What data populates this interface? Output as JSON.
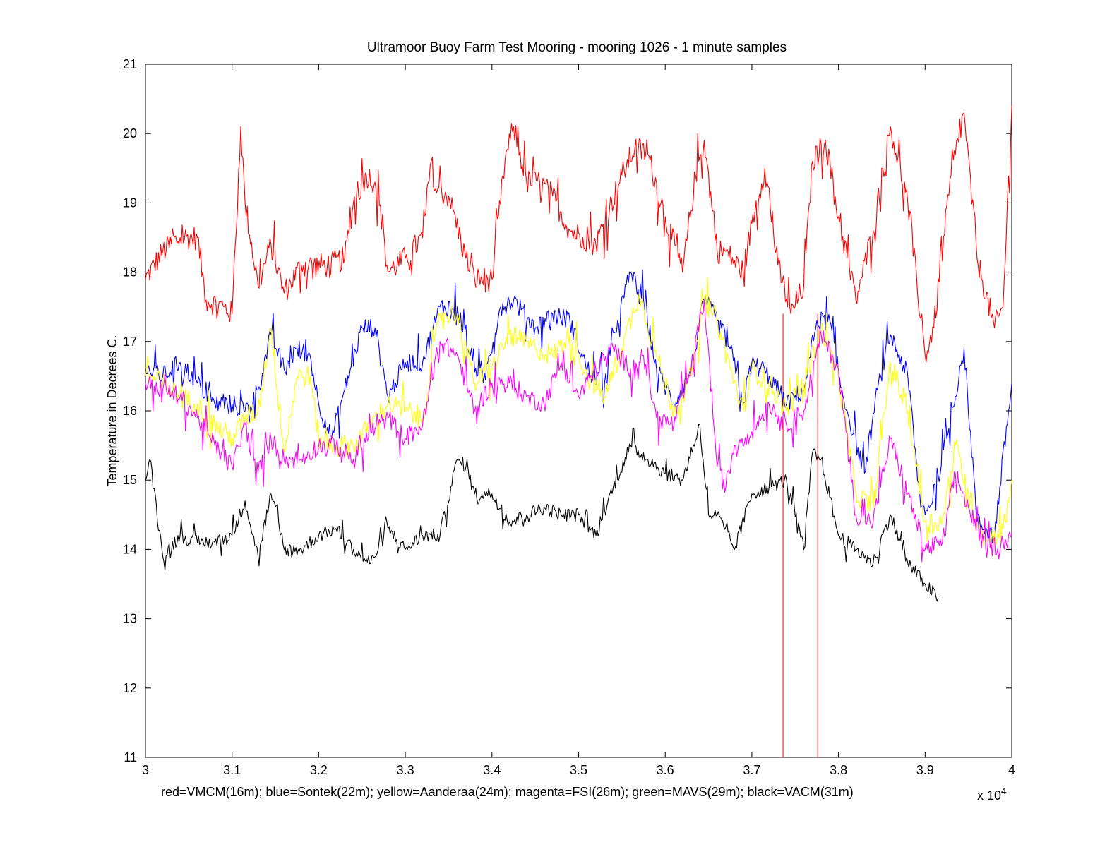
{
  "chart_data": {
    "type": "line",
    "title": "Ultramoor Buoy Farm Test Mooring - mooring 1026 - 1 minute samples",
    "xlabel": "red=VMCM(16m); blue=Sontek(22m); yellow=Aanderaa(24m); magenta=FSI(26m); green=MAVS(29m); black=VACM(31m)",
    "ylabel": "Temperature in Decrees C.",
    "x_exponent_label": "x 10",
    "x_exponent_power": "4",
    "xlim": [
      3,
      4
    ],
    "ylim": [
      11,
      21
    ],
    "xticks": [
      "3",
      "3.1",
      "3.2",
      "3.3",
      "3.4",
      "3.5",
      "3.6",
      "3.7",
      "3.8",
      "3.9",
      "4"
    ],
    "xtick_values": [
      3,
      3.1,
      3.2,
      3.3,
      3.4,
      3.5,
      3.6,
      3.7,
      3.8,
      3.9,
      4
    ],
    "yticks": [
      "11",
      "12",
      "13",
      "14",
      "15",
      "16",
      "17",
      "18",
      "19",
      "20",
      "21"
    ],
    "ytick_values": [
      11,
      12,
      13,
      14,
      15,
      16,
      17,
      18,
      19,
      20,
      21
    ],
    "grid": false,
    "series": [
      {
        "color": "#ff0000",
        "x": [
          3.0,
          3.02,
          3.04,
          3.06,
          3.07,
          3.09,
          3.1,
          3.11,
          3.115,
          3.13,
          3.145,
          3.16,
          3.18,
          3.21,
          3.23,
          3.24,
          3.255,
          3.265,
          3.275,
          3.28,
          3.3,
          3.32,
          3.33,
          3.335,
          3.35,
          3.37,
          3.38,
          3.4,
          3.415,
          3.425,
          3.44,
          3.455,
          3.47,
          3.49,
          3.505,
          3.52,
          3.55,
          3.565,
          3.58,
          3.6,
          3.62,
          3.635,
          3.645,
          3.66,
          3.67,
          3.69,
          3.7,
          3.715,
          3.73,
          3.745,
          3.76,
          3.77,
          3.785,
          3.8,
          3.82,
          3.84,
          3.86,
          3.88,
          3.9,
          3.91,
          3.93,
          3.945,
          3.96,
          3.98,
          3.99,
          4.0
        ],
        "y": [
          17.9,
          18.3,
          18.5,
          18.5,
          17.6,
          17.5,
          17.4,
          20.1,
          19.0,
          17.8,
          18.4,
          17.7,
          18.1,
          18.1,
          18.2,
          19.0,
          19.4,
          19.3,
          18.6,
          18.0,
          18.2,
          18.5,
          19.6,
          19.2,
          19.1,
          18.2,
          17.9,
          17.9,
          19.6,
          20.1,
          19.3,
          19.3,
          19.1,
          18.6,
          18.5,
          18.4,
          19.4,
          19.8,
          19.7,
          18.8,
          18.0,
          19.4,
          19.9,
          18.3,
          18.3,
          18.0,
          18.7,
          19.5,
          18.1,
          17.4,
          17.8,
          19.6,
          19.9,
          18.8,
          17.6,
          18.6,
          20.1,
          19.0,
          16.8,
          17.2,
          19.4,
          20.3,
          18.2,
          17.2,
          17.5,
          20.4
        ]
      },
      {
        "color": "#0000ff",
        "x": [
          3.0,
          3.02,
          3.04,
          3.06,
          3.08,
          3.1,
          3.115,
          3.13,
          3.145,
          3.16,
          3.175,
          3.19,
          3.2,
          3.215,
          3.23,
          3.25,
          3.265,
          3.28,
          3.3,
          3.32,
          3.34,
          3.36,
          3.375,
          3.39,
          3.41,
          3.425,
          3.45,
          3.47,
          3.49,
          3.51,
          3.53,
          3.545,
          3.56,
          3.575,
          3.59,
          3.61,
          3.63,
          3.645,
          3.66,
          3.675,
          3.69,
          3.7,
          3.72,
          3.74,
          3.76,
          3.775,
          3.79,
          3.8,
          3.81,
          3.83,
          3.845,
          3.86,
          3.88,
          3.895,
          3.905,
          3.925,
          3.945,
          3.96,
          3.98,
          4.0
        ],
        "y": [
          16.6,
          16.5,
          16.7,
          16.4,
          16.1,
          16.1,
          16.0,
          16.3,
          17.1,
          16.6,
          16.9,
          16.8,
          16.1,
          15.6,
          16.3,
          17.2,
          17.2,
          16.2,
          16.7,
          16.7,
          17.5,
          17.5,
          16.8,
          16.4,
          17.5,
          17.6,
          17.2,
          17.4,
          17.3,
          16.6,
          16.4,
          17.3,
          18.0,
          17.6,
          16.6,
          16.1,
          16.6,
          17.6,
          17.3,
          16.9,
          16.1,
          16.7,
          16.5,
          16.1,
          16.3,
          17.3,
          17.3,
          16.5,
          16.0,
          15.1,
          16.3,
          17.1,
          16.5,
          14.6,
          14.6,
          15.6,
          16.9,
          14.4,
          14.2,
          16.4
        ]
      },
      {
        "color": "#ffff00",
        "x": [
          3.0,
          3.02,
          3.04,
          3.06,
          3.08,
          3.1,
          3.115,
          3.13,
          3.145,
          3.16,
          3.175,
          3.19,
          3.2,
          3.22,
          3.24,
          3.26,
          3.28,
          3.3,
          3.32,
          3.34,
          3.36,
          3.38,
          3.4,
          3.42,
          3.45,
          3.47,
          3.49,
          3.51,
          3.53,
          3.55,
          3.57,
          3.59,
          3.61,
          3.63,
          3.645,
          3.66,
          3.675,
          3.69,
          3.7,
          3.72,
          3.74,
          3.76,
          3.78,
          3.8,
          3.82,
          3.84,
          3.86,
          3.88,
          3.9,
          3.92,
          3.935,
          3.95,
          3.97,
          3.99,
          4.0
        ],
        "y": [
          16.5,
          16.4,
          16.2,
          16.1,
          15.8,
          15.6,
          15.9,
          16.0,
          17.2,
          15.4,
          16.5,
          16.5,
          15.6,
          15.5,
          15.5,
          15.8,
          16.1,
          16.0,
          15.9,
          17.4,
          17.4,
          16.4,
          16.6,
          17.1,
          16.9,
          16.8,
          17.1,
          16.5,
          16.2,
          16.9,
          17.7,
          16.8,
          16.0,
          16.5,
          17.6,
          17.3,
          16.6,
          16.0,
          16.6,
          16.4,
          16.0,
          16.4,
          17.2,
          16.5,
          14.8,
          14.6,
          16.7,
          16.0,
          14.4,
          14.4,
          15.5,
          14.8,
          14.1,
          14.3,
          15.0
        ]
      },
      {
        "color": "#ff00ff",
        "x": [
          3.0,
          3.02,
          3.04,
          3.06,
          3.08,
          3.1,
          3.115,
          3.13,
          3.145,
          3.16,
          3.18,
          3.2,
          3.22,
          3.24,
          3.26,
          3.28,
          3.3,
          3.32,
          3.34,
          3.36,
          3.38,
          3.4,
          3.42,
          3.44,
          3.46,
          3.48,
          3.5,
          3.52,
          3.54,
          3.56,
          3.575,
          3.59,
          3.61,
          3.63,
          3.645,
          3.66,
          3.67,
          3.68,
          3.7,
          3.72,
          3.74,
          3.76,
          3.78,
          3.8,
          3.82,
          3.84,
          3.86,
          3.88,
          3.9,
          3.92,
          3.935,
          3.95,
          3.97,
          3.99,
          4.0
        ],
        "y": [
          16.4,
          16.3,
          16.2,
          15.9,
          15.5,
          15.2,
          15.8,
          15.1,
          15.6,
          15.3,
          15.3,
          15.5,
          15.5,
          15.3,
          15.7,
          15.9,
          15.6,
          15.8,
          17.0,
          16.8,
          16.0,
          16.4,
          16.4,
          16.2,
          16.1,
          16.7,
          16.2,
          16.6,
          16.9,
          16.6,
          16.8,
          15.9,
          15.8,
          16.6,
          17.6,
          15.2,
          14.9,
          15.5,
          15.7,
          16.1,
          15.8,
          16.0,
          17.1,
          16.6,
          14.5,
          14.4,
          15.6,
          14.8,
          14.0,
          14.1,
          15.1,
          14.6,
          14.0,
          14.1,
          14.2
        ]
      },
      {
        "color": "#000000",
        "x": [
          3.0,
          3.005,
          3.02,
          3.04,
          3.06,
          3.08,
          3.1,
          3.115,
          3.13,
          3.145,
          3.16,
          3.18,
          3.2,
          3.22,
          3.24,
          3.26,
          3.28,
          3.3,
          3.32,
          3.34,
          3.36,
          3.37,
          3.38,
          3.4,
          3.42,
          3.44,
          3.46,
          3.48,
          3.5,
          3.52,
          3.54,
          3.56,
          3.58,
          3.6,
          3.62,
          3.64,
          3.65,
          3.66,
          3.68,
          3.7,
          3.72,
          3.74,
          3.76,
          3.77,
          3.78,
          3.8,
          3.82,
          3.84,
          3.86,
          3.88,
          3.9,
          3.915
        ],
        "y": [
          15.0,
          15.3,
          13.9,
          14.2,
          14.1,
          14.1,
          14.2,
          14.7,
          13.9,
          14.8,
          14.0,
          14.0,
          14.2,
          14.3,
          14.0,
          13.8,
          14.3,
          14.0,
          14.2,
          14.2,
          15.3,
          15.2,
          14.8,
          14.8,
          14.4,
          14.5,
          14.6,
          14.5,
          14.5,
          14.2,
          14.9,
          15.5,
          15.3,
          15.1,
          15.0,
          15.8,
          14.5,
          14.5,
          14.0,
          14.8,
          14.9,
          15.0,
          14.0,
          15.4,
          15.3,
          14.2,
          14.0,
          13.8,
          14.5,
          13.8,
          13.5,
          13.3
        ]
      }
    ],
    "annotations": [
      {
        "type": "vertical-line",
        "color": "#ff0000",
        "x": 3.736,
        "y_from": 11,
        "y_to": 17.4
      },
      {
        "type": "vertical-line",
        "color": "#ff0000",
        "x": 3.776,
        "y_from": 11,
        "y_to": 17.4
      }
    ]
  }
}
